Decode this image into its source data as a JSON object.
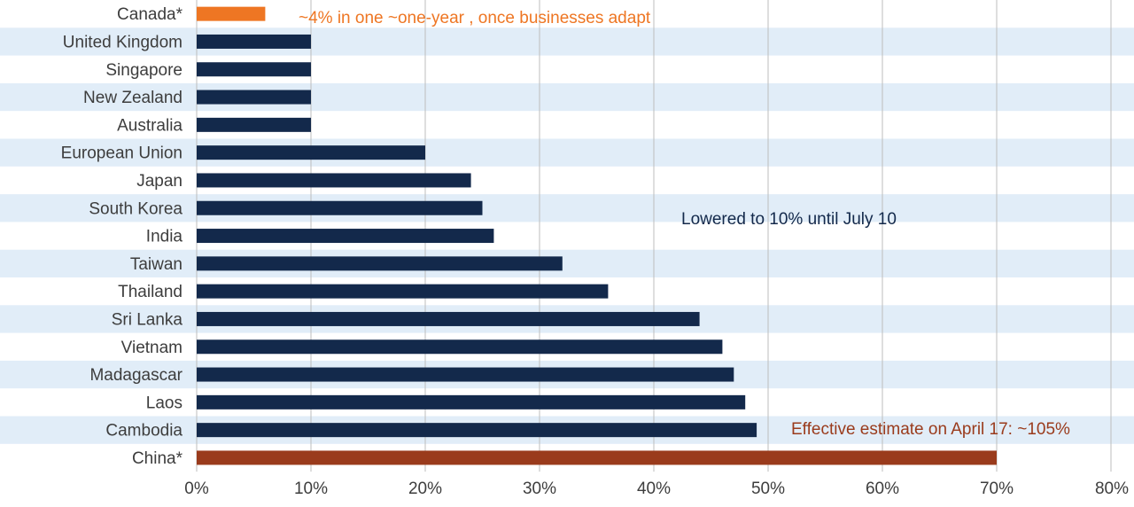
{
  "chart_data": {
    "type": "bar",
    "orientation": "horizontal",
    "categories": [
      "Canada*",
      "United Kingdom",
      "Singapore",
      "New Zealand",
      "Australia",
      "European Union",
      "Japan",
      "South Korea",
      "India",
      "Taiwan",
      "Thailand",
      "Sri Lanka",
      "Vietnam",
      "Madagascar",
      "Laos",
      "Cambodia",
      "China*"
    ],
    "values": [
      6,
      10,
      10,
      10,
      10,
      20,
      24,
      25,
      26,
      32,
      36,
      44,
      46,
      47,
      48,
      49,
      70
    ],
    "xlim": [
      0,
      80
    ],
    "xticks": [
      0,
      10,
      20,
      30,
      40,
      50,
      60,
      70,
      80
    ],
    "tick_labels": [
      "0%",
      "10%",
      "20%",
      "30%",
      "40%",
      "50%",
      "60%",
      "70%",
      "80%"
    ],
    "grid": true,
    "legend": "none",
    "title": "",
    "xlabel": "",
    "ylabel": "",
    "annotations": {
      "canada": "~4%  in one ~one-year , once businesses adapt",
      "lowered": "Lowered to 10% until July 10",
      "china": "Effective estimate on April 17: ~105%"
    },
    "colors": {
      "default_bar": "#13294b",
      "canada_bar": "#ee7623",
      "china_bar": "#9a3b1c",
      "band": "#e1edf8",
      "grid": "#bdbdbd",
      "text": "#3d3d3d",
      "canada_note": "#ee7623",
      "lowered_note": "#13294b",
      "china_note": "#9a3b1c"
    },
    "highlight": {
      "Canada*": "canada_bar",
      "China*": "china_bar"
    }
  }
}
